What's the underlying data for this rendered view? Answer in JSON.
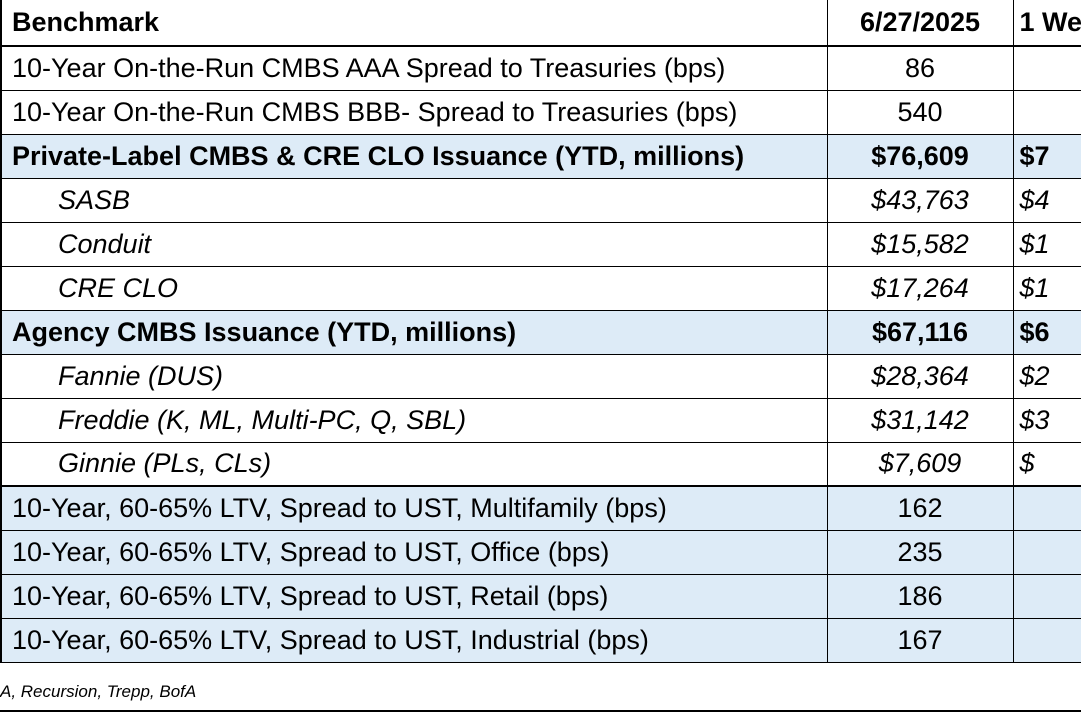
{
  "header": {
    "label": "Benchmark",
    "value": "6/27/2025",
    "week": "1 We"
  },
  "rows": [
    {
      "label": "10-Year On-the-Run CMBS AAA Spread to Treasuries (bps)",
      "value": "86",
      "week": ""
    },
    {
      "label": "10-Year On-the-Run CMBS BBB- Spread to Treasuries (bps)",
      "value": "540",
      "week": ""
    },
    {
      "label": "Private-Label CMBS & CRE CLO Issuance (YTD, millions)",
      "value": "$76,609",
      "week": "$7"
    },
    {
      "label": "SASB",
      "value": "$43,763",
      "week": "$4"
    },
    {
      "label": "Conduit",
      "value": "$15,582",
      "week": "$1"
    },
    {
      "label": "CRE CLO",
      "value": "$17,264",
      "week": "$1"
    },
    {
      "label": "Agency CMBS Issuance (YTD, millions)",
      "value": "$67,116",
      "week": "$6"
    },
    {
      "label": "Fannie (DUS)",
      "value": "$28,364",
      "week": "$2"
    },
    {
      "label": "Freddie (K, ML, Multi-PC, Q, SBL)",
      "value": "$31,142",
      "week": "$3"
    },
    {
      "label": "Ginnie (PLs, CLs)",
      "value": "$7,609",
      "week": "$"
    },
    {
      "label": "10-Year, 60-65% LTV, Spread to UST, Multifamily (bps)",
      "value": "162",
      "week": ""
    },
    {
      "label": "10-Year, 60-65% LTV, Spread to UST, Office (bps)",
      "value": "235",
      "week": ""
    },
    {
      "label": "10-Year, 60-65% LTV, Spread to UST, Retail (bps)",
      "value": "186",
      "week": ""
    },
    {
      "label": "10-Year, 60-65% LTV, Spread to UST, Industrial (bps)",
      "value": "167",
      "week": ""
    }
  ],
  "source": "A, Recursion, Trepp, BofA",
  "colors": {
    "shade": "#ddebf7"
  }
}
